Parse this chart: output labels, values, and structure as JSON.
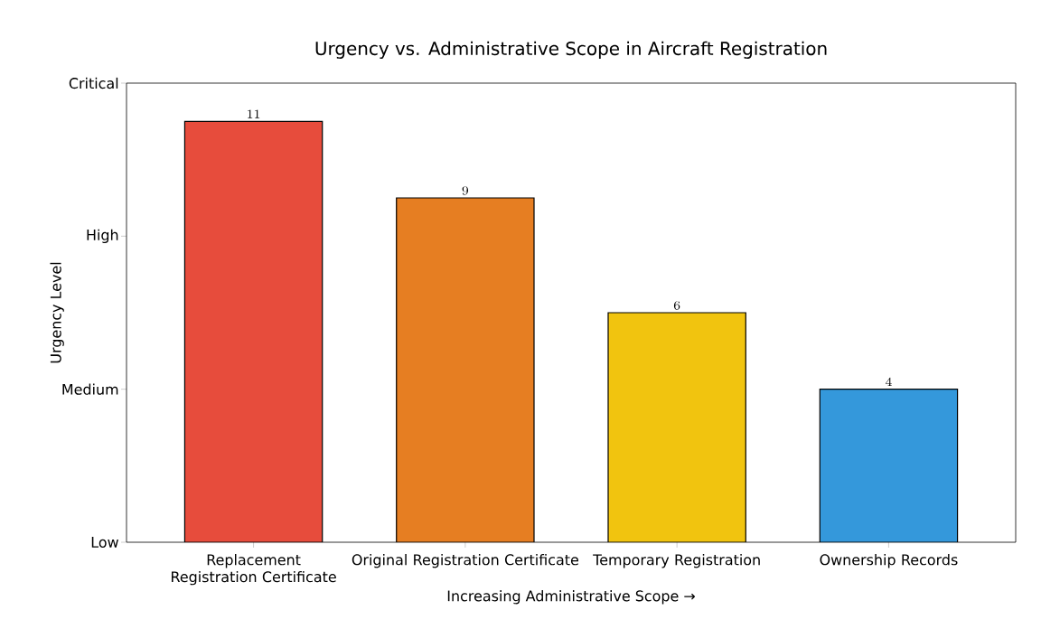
{
  "chart_data": {
    "type": "bar",
    "title": "Urgency vs. Administrative Scope in Aircraft Registration",
    "xlabel": "Increasing Administrative Scope →",
    "ylabel": "Urgency Level",
    "categories": [
      "Replacement Registration Certificate",
      "Original Registration Certificate",
      "Temporary Registration",
      "Ownership Records"
    ],
    "values": [
      11,
      9,
      6,
      4
    ],
    "data_labels": true,
    "colors": [
      "#e74c3c",
      "#e67e22",
      "#f1c40f",
      "#3498db"
    ],
    "ylim": [
      0,
      12
    ],
    "annotations": [
      "Low",
      "Medium",
      "High",
      "Critical"
    ],
    "grid": false
  }
}
